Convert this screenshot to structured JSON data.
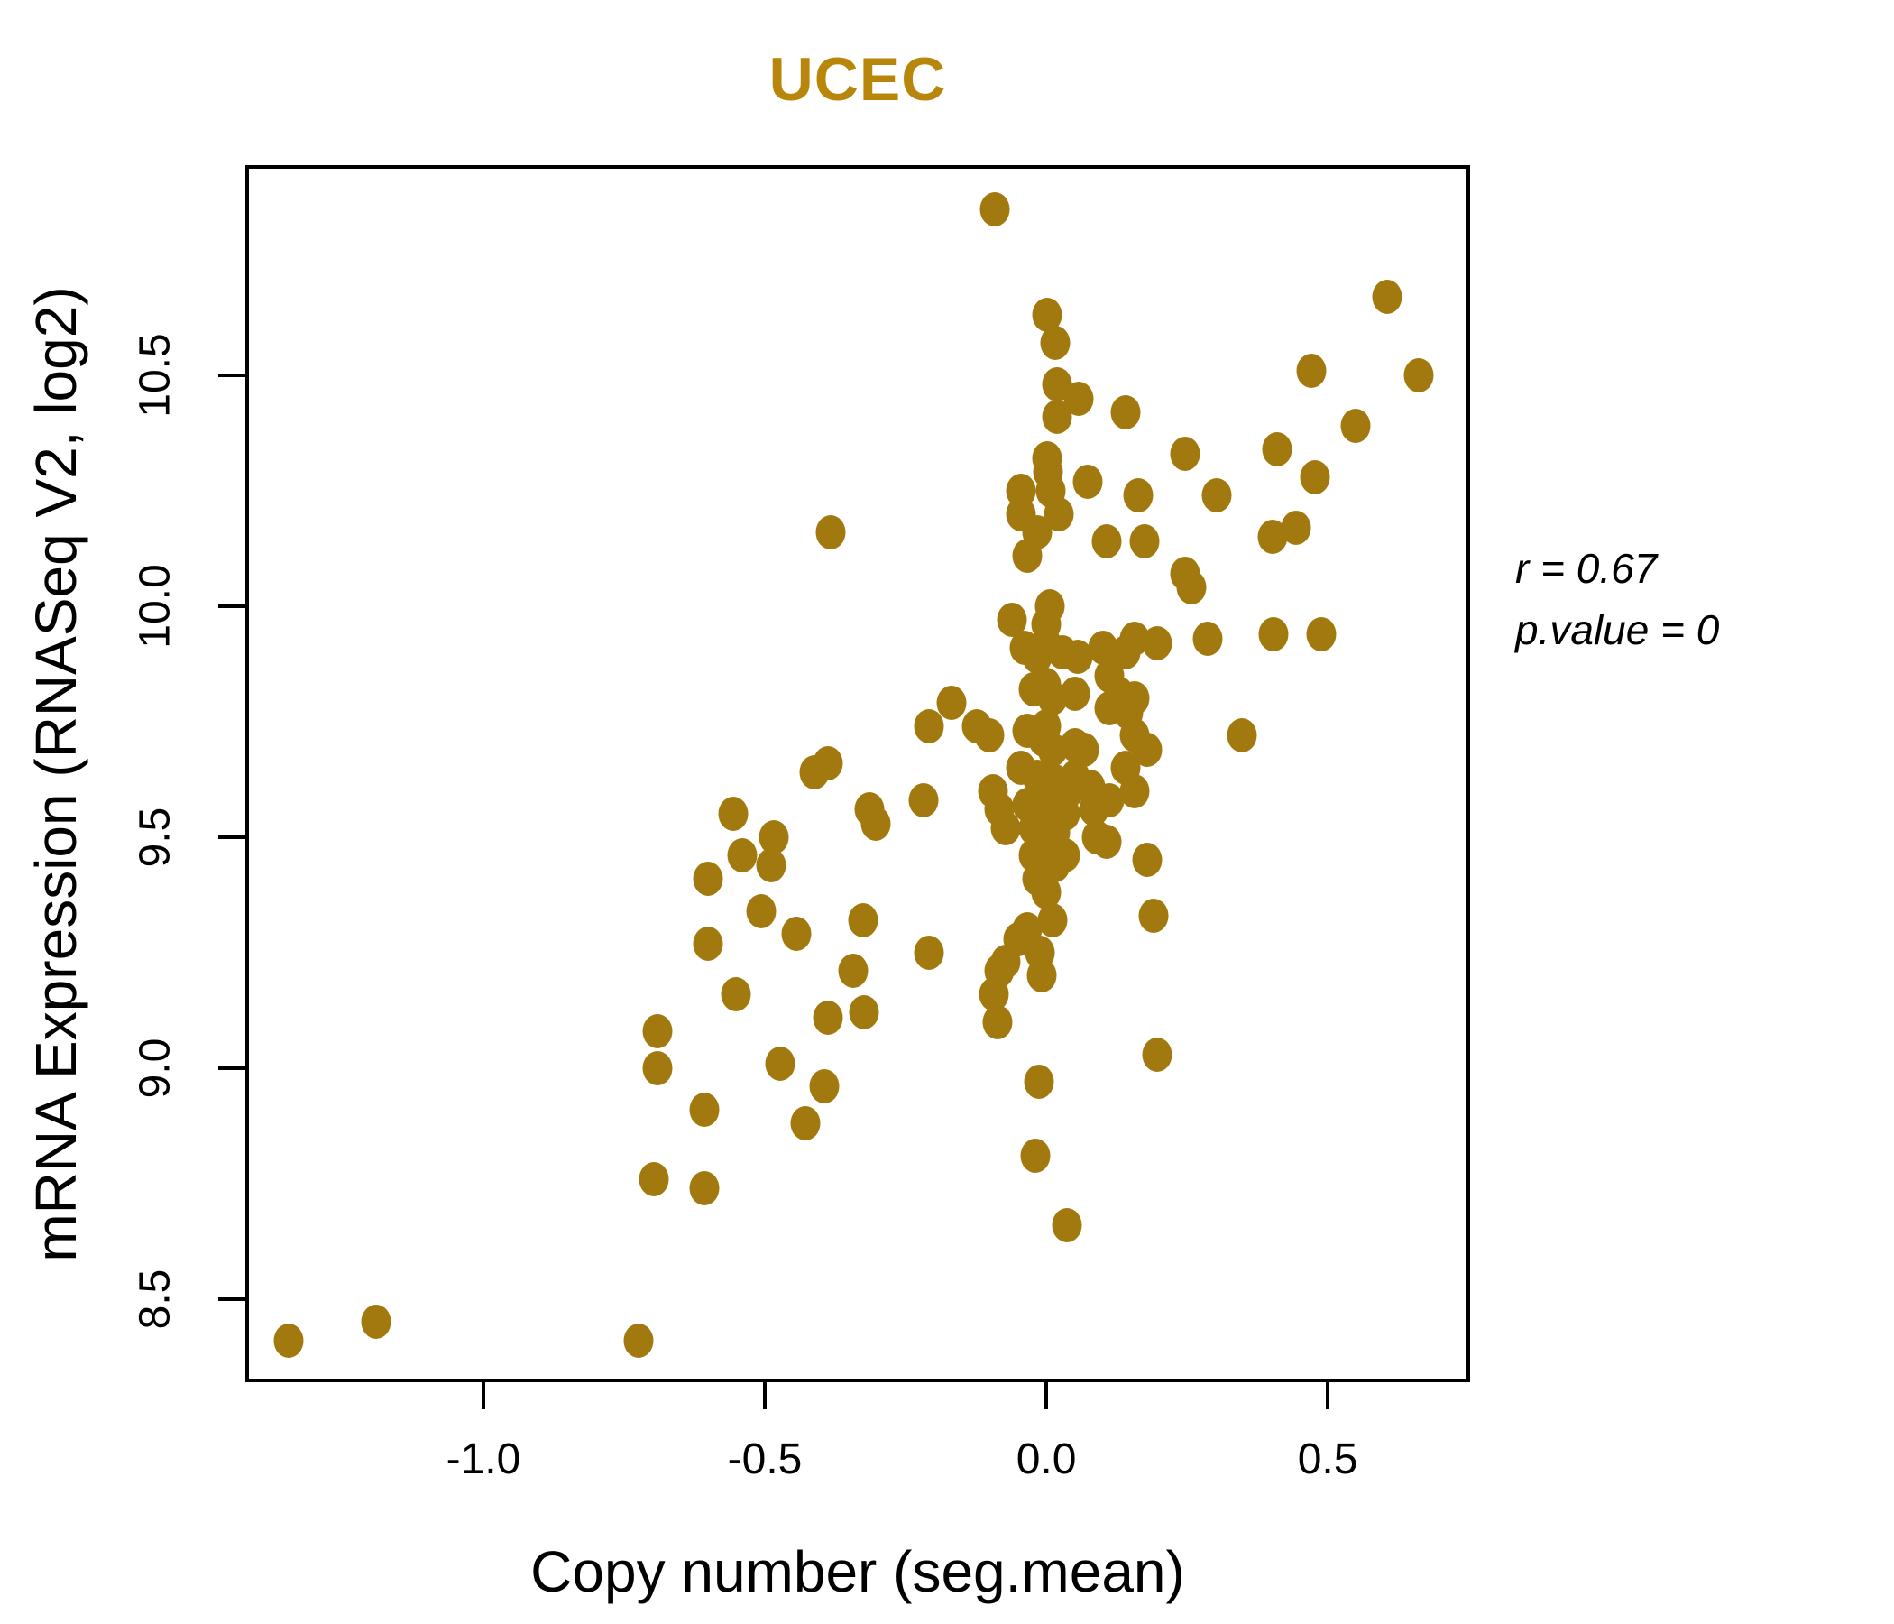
{
  "chart_data": {
    "type": "scatter",
    "title": "UCEC",
    "xlabel": "Copy number (seg.mean)",
    "ylabel": "mRNA Expression (RNASeq V2, log2)",
    "x_ticks": [
      -1.0,
      -0.5,
      0.0,
      0.5
    ],
    "y_ticks": [
      8.5,
      9.0,
      9.5,
      10.0,
      10.5
    ],
    "xlim": [
      -1.423,
      0.753
    ],
    "ylim": [
      8.32,
      10.955
    ],
    "grid": false,
    "legend": null,
    "title_color": "#B8860B",
    "point_color": "#A2790F",
    "annotation": {
      "r_label": "r = 0.67",
      "p_label": "p.value = 0",
      "r": 0.67,
      "p_value": 0
    },
    "points": [
      [
        -0.091,
        10.86
      ],
      [
        0.606,
        10.67
      ],
      [
        0.002,
        10.63
      ],
      [
        0.016,
        10.57
      ],
      [
        0.471,
        10.51
      ],
      [
        0.662,
        10.5
      ],
      [
        0.019,
        10.48
      ],
      [
        0.058,
        10.45
      ],
      [
        0.141,
        10.42
      ],
      [
        0.019,
        10.41
      ],
      [
        0.55,
        10.39
      ],
      [
        0.247,
        10.33
      ],
      [
        0.41,
        10.34
      ],
      [
        0.002,
        10.32
      ],
      [
        0.003,
        10.29
      ],
      [
        0.478,
        10.28
      ],
      [
        0.074,
        10.27
      ],
      [
        0.008,
        10.25
      ],
      [
        -0.045,
        10.25
      ],
      [
        0.163,
        10.24
      ],
      [
        0.303,
        10.24
      ],
      [
        -0.045,
        10.2
      ],
      [
        0.444,
        10.17
      ],
      [
        0.402,
        10.15
      ],
      [
        0.022,
        10.2
      ],
      [
        -0.016,
        10.16
      ],
      [
        -0.383,
        10.16
      ],
      [
        0.107,
        10.14
      ],
      [
        0.175,
        10.14
      ],
      [
        -0.034,
        10.11
      ],
      [
        0.247,
        10.07
      ],
      [
        0.258,
        10.04
      ],
      [
        0.006,
        10.0
      ],
      [
        -0.061,
        9.97
      ],
      [
        0.0,
        9.96
      ],
      [
        0.0,
        9.92
      ],
      [
        -0.038,
        9.91
      ],
      [
        -0.016,
        9.89
      ],
      [
        0.029,
        9.9
      ],
      [
        0.056,
        9.89
      ],
      [
        0.101,
        9.91
      ],
      [
        0.141,
        9.9
      ],
      [
        0.157,
        9.93
      ],
      [
        0.197,
        9.92
      ],
      [
        0.287,
        9.93
      ],
      [
        0.404,
        9.94
      ],
      [
        0.489,
        9.94
      ],
      [
        0.112,
        9.85
      ],
      [
        0.0,
        9.83
      ],
      [
        -0.022,
        9.82
      ],
      [
        0.011,
        9.8
      ],
      [
        0.051,
        9.81
      ],
      [
        0.13,
        9.81
      ],
      [
        0.157,
        9.8
      ],
      [
        0.112,
        9.78
      ],
      [
        0.146,
        9.77
      ],
      [
        -0.168,
        9.79
      ],
      [
        -0.208,
        9.74
      ],
      [
        -0.123,
        9.74
      ],
      [
        -0.101,
        9.72
      ],
      [
        -0.034,
        9.73
      ],
      [
        0.0,
        9.74
      ],
      [
        -0.005,
        9.71
      ],
      [
        0.011,
        9.69
      ],
      [
        0.051,
        9.7
      ],
      [
        0.067,
        9.69
      ],
      [
        0.157,
        9.72
      ],
      [
        0.18,
        9.69
      ],
      [
        0.348,
        9.72
      ],
      [
        0.141,
        9.65
      ],
      [
        -0.045,
        9.65
      ],
      [
        -0.016,
        9.63
      ],
      [
        0.016,
        9.62
      ],
      [
        0.051,
        9.63
      ],
      [
        0.079,
        9.61
      ],
      [
        0.04,
        9.6
      ],
      [
        0.0,
        9.59
      ],
      [
        -0.034,
        9.57
      ],
      [
        0.0,
        9.55
      ],
      [
        0.034,
        9.55
      ],
      [
        0.085,
        9.56
      ],
      [
        0.112,
        9.58
      ],
      [
        0.157,
        9.6
      ],
      [
        -0.314,
        9.56
      ],
      [
        -0.303,
        9.53
      ],
      [
        -0.218,
        9.58
      ],
      [
        -0.095,
        9.6
      ],
      [
        -0.083,
        9.56
      ],
      [
        -0.072,
        9.52
      ],
      [
        -0.022,
        9.52
      ],
      [
        0.016,
        9.51
      ],
      [
        -0.011,
        9.49
      ],
      [
        -0.022,
        9.46
      ],
      [
        -0.005,
        9.43
      ],
      [
        0.016,
        9.44
      ],
      [
        0.034,
        9.46
      ],
      [
        0.09,
        9.5
      ],
      [
        0.107,
        9.49
      ],
      [
        0.18,
        9.45
      ],
      [
        -0.325,
        9.32
      ],
      [
        -0.208,
        9.25
      ],
      [
        -0.016,
        9.41
      ],
      [
        0.0,
        9.38
      ],
      [
        0.011,
        9.32
      ],
      [
        -0.05,
        9.28
      ],
      [
        -0.034,
        9.3
      ],
      [
        -0.011,
        9.25
      ],
      [
        -0.072,
        9.23
      ],
      [
        -0.083,
        9.21
      ],
      [
        0.191,
        9.33
      ],
      [
        -0.412,
        9.64
      ],
      [
        -0.388,
        9.66
      ],
      [
        -0.556,
        9.55
      ],
      [
        -0.484,
        9.5
      ],
      [
        -0.54,
        9.46
      ],
      [
        -0.489,
        9.44
      ],
      [
        -0.601,
        9.41
      ],
      [
        -0.506,
        9.34
      ],
      [
        -0.444,
        9.29
      ],
      [
        -0.601,
        9.27
      ],
      [
        -0.343,
        9.21
      ],
      [
        -0.551,
        9.16
      ],
      [
        -0.388,
        9.11
      ],
      [
        -0.324,
        9.12
      ],
      [
        -0.691,
        9.08
      ],
      [
        -0.691,
        9.0
      ],
      [
        -0.473,
        9.01
      ],
      [
        -0.394,
        8.96
      ],
      [
        -0.607,
        8.91
      ],
      [
        -0.428,
        8.88
      ],
      [
        -0.697,
        8.76
      ],
      [
        -0.607,
        8.74
      ],
      [
        -1.346,
        8.41
      ],
      [
        -1.19,
        8.45
      ],
      [
        -0.724,
        8.41
      ],
      [
        -0.093,
        9.16
      ],
      [
        -0.008,
        9.2
      ],
      [
        -0.087,
        9.1
      ],
      [
        -0.013,
        8.97
      ],
      [
        -0.019,
        8.81
      ],
      [
        0.037,
        8.66
      ],
      [
        0.197,
        9.03
      ]
    ]
  }
}
